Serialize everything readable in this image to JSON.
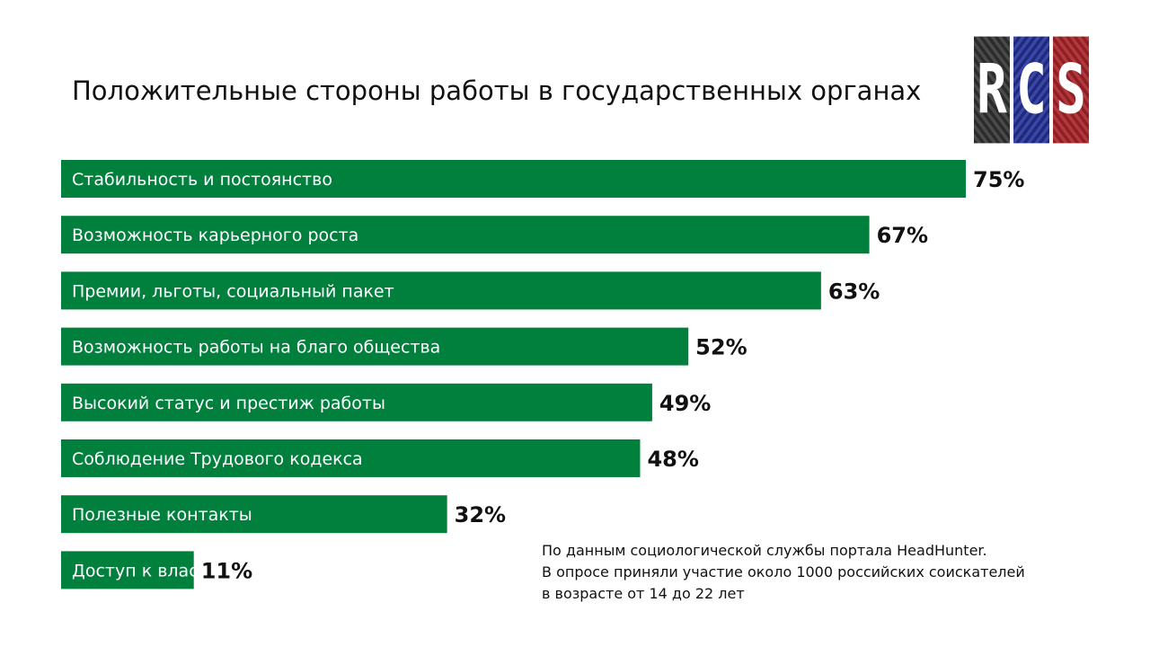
{
  "logo": {
    "letters": [
      "R",
      "C",
      "S"
    ],
    "colors": [
      "#3a3a3a",
      "#2d3891",
      "#a12c30"
    ]
  },
  "note": {
    "lines": [
      "По данным социологической службы портала HeadHunter.",
      "В опросе приняли участие около 1000 российских соискателей",
      "в возрасте от 14 до 22 лет"
    ]
  },
  "chart_data": {
    "type": "bar",
    "orientation": "horizontal",
    "title": "Положительные стороны работы в государственных органах",
    "categories": [
      "Стабильность и постоянство",
      "Возможность карьерного роста",
      "Премии, льготы, социальный пакет",
      "Возможность работы на благо общества",
      "Высокий статус и престиж работы",
      "Соблюдение Трудового кодекса",
      "Полезные контакты",
      "Доступ к власти"
    ],
    "values": [
      75,
      67,
      63,
      52,
      49,
      48,
      32,
      11
    ],
    "value_labels": [
      "75%",
      "67%",
      "63%",
      "52%",
      "49%",
      "48%",
      "32%",
      "11%"
    ],
    "unit": "%",
    "bar_color": "#007f3d",
    "grid": false,
    "legend": "none"
  }
}
